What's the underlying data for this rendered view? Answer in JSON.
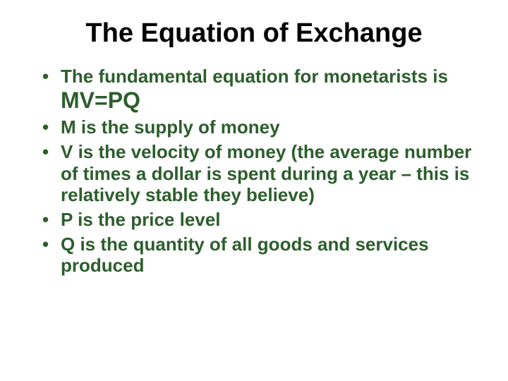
{
  "title": "The Equation of Exchange",
  "text_color": "#2c5e2c",
  "title_color": "#000000",
  "background_color": "#ffffff",
  "title_fontsize": 38,
  "bullet_fontsize": 26,
  "equation_fontsize": 32,
  "bullets": {
    "b1_prefix": "The fundamental equation for monetarists is ",
    "b1_equation": "MV=PQ",
    "b2": "M is the supply of money",
    "b3": "V is the velocity of money (the average number of times a dollar is spent during a year – this is relatively stable they believe)",
    "b4": "P is the price level",
    "b5": "Q is the quantity of all goods and services produced"
  }
}
